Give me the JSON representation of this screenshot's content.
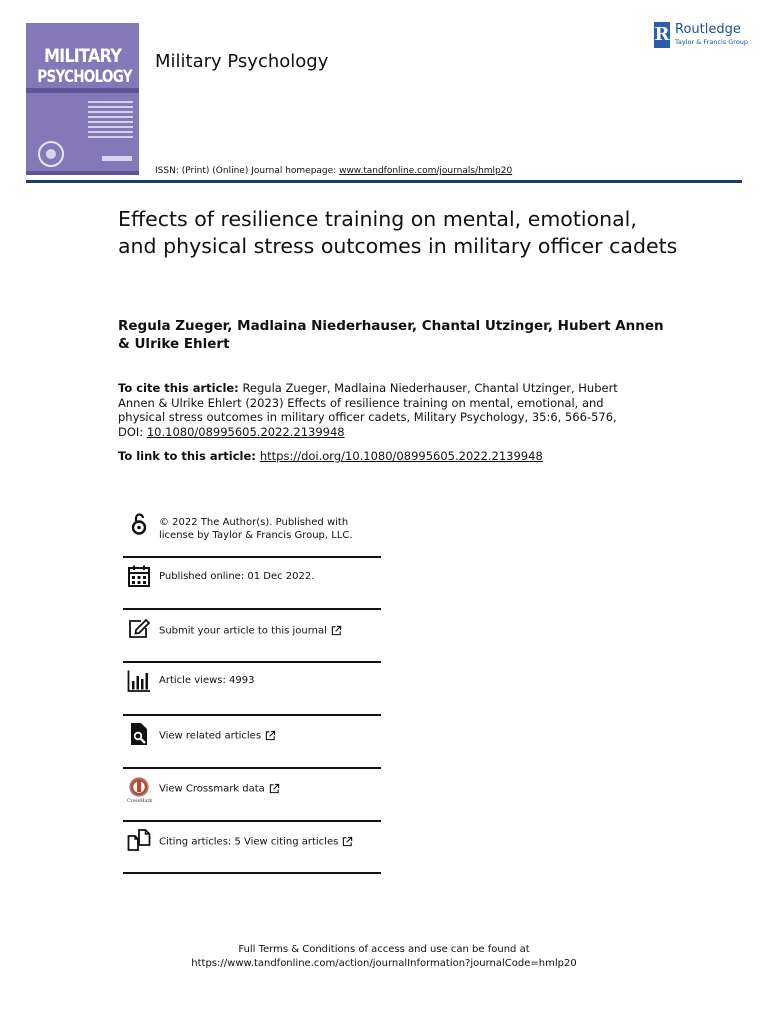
{
  "header": {
    "cover": {
      "line1": "MILITARY",
      "line2": "PSYCHOLOGY"
    },
    "journal_title": "Military Psychology",
    "publisher": {
      "name": "Routledge",
      "subtitle": "Taylor & Francis Group"
    },
    "issn_prefix": "ISSN: (Print) (Online) Journal homepage: ",
    "homepage_link": "www.tandfonline.com/journals/hmlp20"
  },
  "article": {
    "title": "Effects of resilience training on mental, emotional, and physical stress outcomes in military officer cadets",
    "authors": "Regula Zueger, Madlaina Niederhauser, Chantal Utzinger, Hubert Annen & Ulrike Ehlert",
    "cite_label": "To cite this article:",
    "cite_text": " Regula Zueger, Madlaina Niederhauser, Chantal Utzinger, Hubert Annen & Ulrike Ehlert (2023) Effects of resilience training on mental, emotional, and physical stress outcomes in military officer cadets, Military Psychology, 35:6, 566-576, DOI: ",
    "cite_doi": "10.1080/08995605.2022.2139948",
    "link_label": "To link to this article: ",
    "link_url": "https://doi.org/10.1080/08995605.2022.2139948"
  },
  "info": {
    "license_line1": "© 2022 The Author(s). Published with",
    "license_line2": "license by Taylor & Francis Group, LLC.",
    "published": "Published online: 01 Dec 2022.",
    "submit": "Submit your article to this journal",
    "views": "Article views: 4993",
    "related": "View related articles",
    "crossmark": "View Crossmark data",
    "crossmark_label": "CrossMark",
    "citing": "Citing articles: 5 View citing articles"
  },
  "footer": {
    "line1": "Full Terms & Conditions of access and use can be found at",
    "line2": "https://www.tandfonline.com/action/journalInformation?journalCode=hmlp20"
  },
  "colors": {
    "cover": "#8478b8",
    "rule": "#1f3a6e",
    "publisher_blue": "#2b5fad"
  }
}
